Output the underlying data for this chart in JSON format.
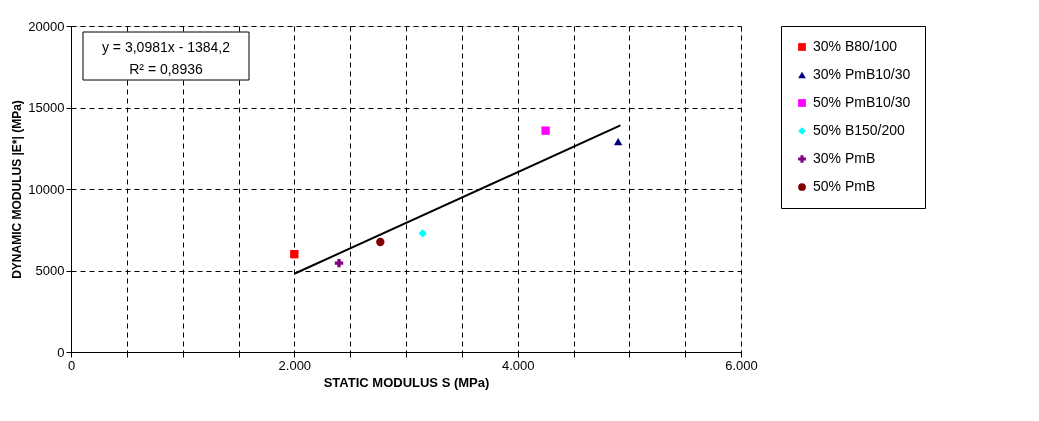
{
  "chart_data": {
    "type": "scatter",
    "xlabel": "STATIC MODULUS S (MPa)",
    "ylabel": "DYNAMIC MODULUS |E*| (MPa)",
    "xlim": [
      0,
      6000
    ],
    "ylim": [
      0,
      20000
    ],
    "xticks": [
      0,
      {
        "value": 500,
        "label": null
      },
      {
        "value": 1000,
        "label": null
      },
      {
        "value": 1500,
        "label": null
      },
      {
        "value": 2000,
        "label": "2.000"
      },
      {
        "value": 2500,
        "label": null
      },
      {
        "value": 3000,
        "label": null
      },
      {
        "value": 3500,
        "label": null
      },
      {
        "value": 4000,
        "label": "4.000"
      },
      {
        "value": 4500,
        "label": null
      },
      {
        "value": 5000,
        "label": null
      },
      {
        "value": 5500,
        "label": null
      },
      {
        "value": 6000,
        "label": "6.000"
      }
    ],
    "yticks": [
      0,
      5000,
      10000,
      15000,
      20000
    ],
    "grid": true,
    "legend": "right",
    "line_style": "dashed",
    "series": [
      {
        "name": "30% B80/100",
        "color": "#ff0000",
        "marker": "square",
        "x": [
          2000
        ],
        "values": [
          6000
        ]
      },
      {
        "name": "30% PmB10/30",
        "color": "#000080",
        "marker": "triangle",
        "x": [
          4900
        ],
        "values": [
          12900
        ]
      },
      {
        "name": "50% PmB10/30",
        "color": "#ff00ff",
        "marker": "square",
        "x": [
          4250
        ],
        "values": [
          13580
        ]
      },
      {
        "name": "50%  B150/200",
        "color": "#00ffff",
        "marker": "diamond",
        "x": [
          3150
        ],
        "values": [
          7280
        ]
      },
      {
        "name": "30% PmB",
        "color": "#800080",
        "marker": "cross",
        "x": [
          2400
        ],
        "values": [
          5450
        ]
      },
      {
        "name": "50% PmB",
        "color": "#800000",
        "marker": "circle",
        "x": [
          2770
        ],
        "values": [
          6750
        ]
      },
      {
        "type": "line",
        "color": "#000000",
        "line_style": "solid",
        "x": [
          2000,
          4920
        ],
        "values": [
          4800,
          13900
        ]
      }
    ],
    "annotations": [
      "y = 3,0981x - 1384,2",
      "R² = 0,8936"
    ]
  }
}
